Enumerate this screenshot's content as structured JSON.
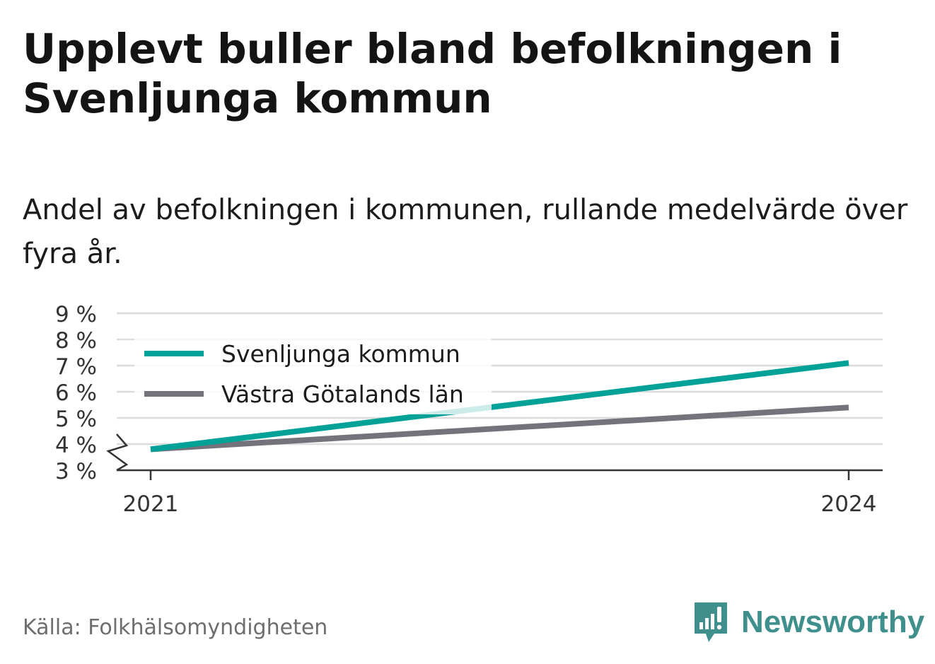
{
  "header": {
    "title": "Upplevt buller bland befolkningen i Svenljunga kommun",
    "subtitle": "Andel av befolkningen i kommunen, rullande medelvärde över fyra år."
  },
  "footer": {
    "source": "Källa: Folkhälsomyndigheten",
    "brand": "Newsworthy",
    "brand_icon": "bar-chart-speech-bubble-icon",
    "brand_color": "#3f8f8c"
  },
  "chart_data": {
    "type": "line",
    "x": [
      2021,
      2024
    ],
    "x_tick_labels": [
      "2021",
      "2024"
    ],
    "y_tick_labels": [
      "3 %",
      "4 %",
      "5 %",
      "6 %",
      "7 %",
      "8 %",
      "9 %"
    ],
    "y_ticks": [
      3,
      4,
      5,
      6,
      7,
      8,
      9
    ],
    "ylim": [
      3,
      9
    ],
    "y_axis_break": true,
    "grid": true,
    "legend_position": "top-left",
    "series": [
      {
        "name": "Svenljunga kommun",
        "values": [
          3.8,
          7.1
        ],
        "color": "#00a196"
      },
      {
        "name": "Västra Götalands län",
        "values": [
          3.8,
          5.4
        ],
        "color": "#74737b"
      }
    ]
  }
}
